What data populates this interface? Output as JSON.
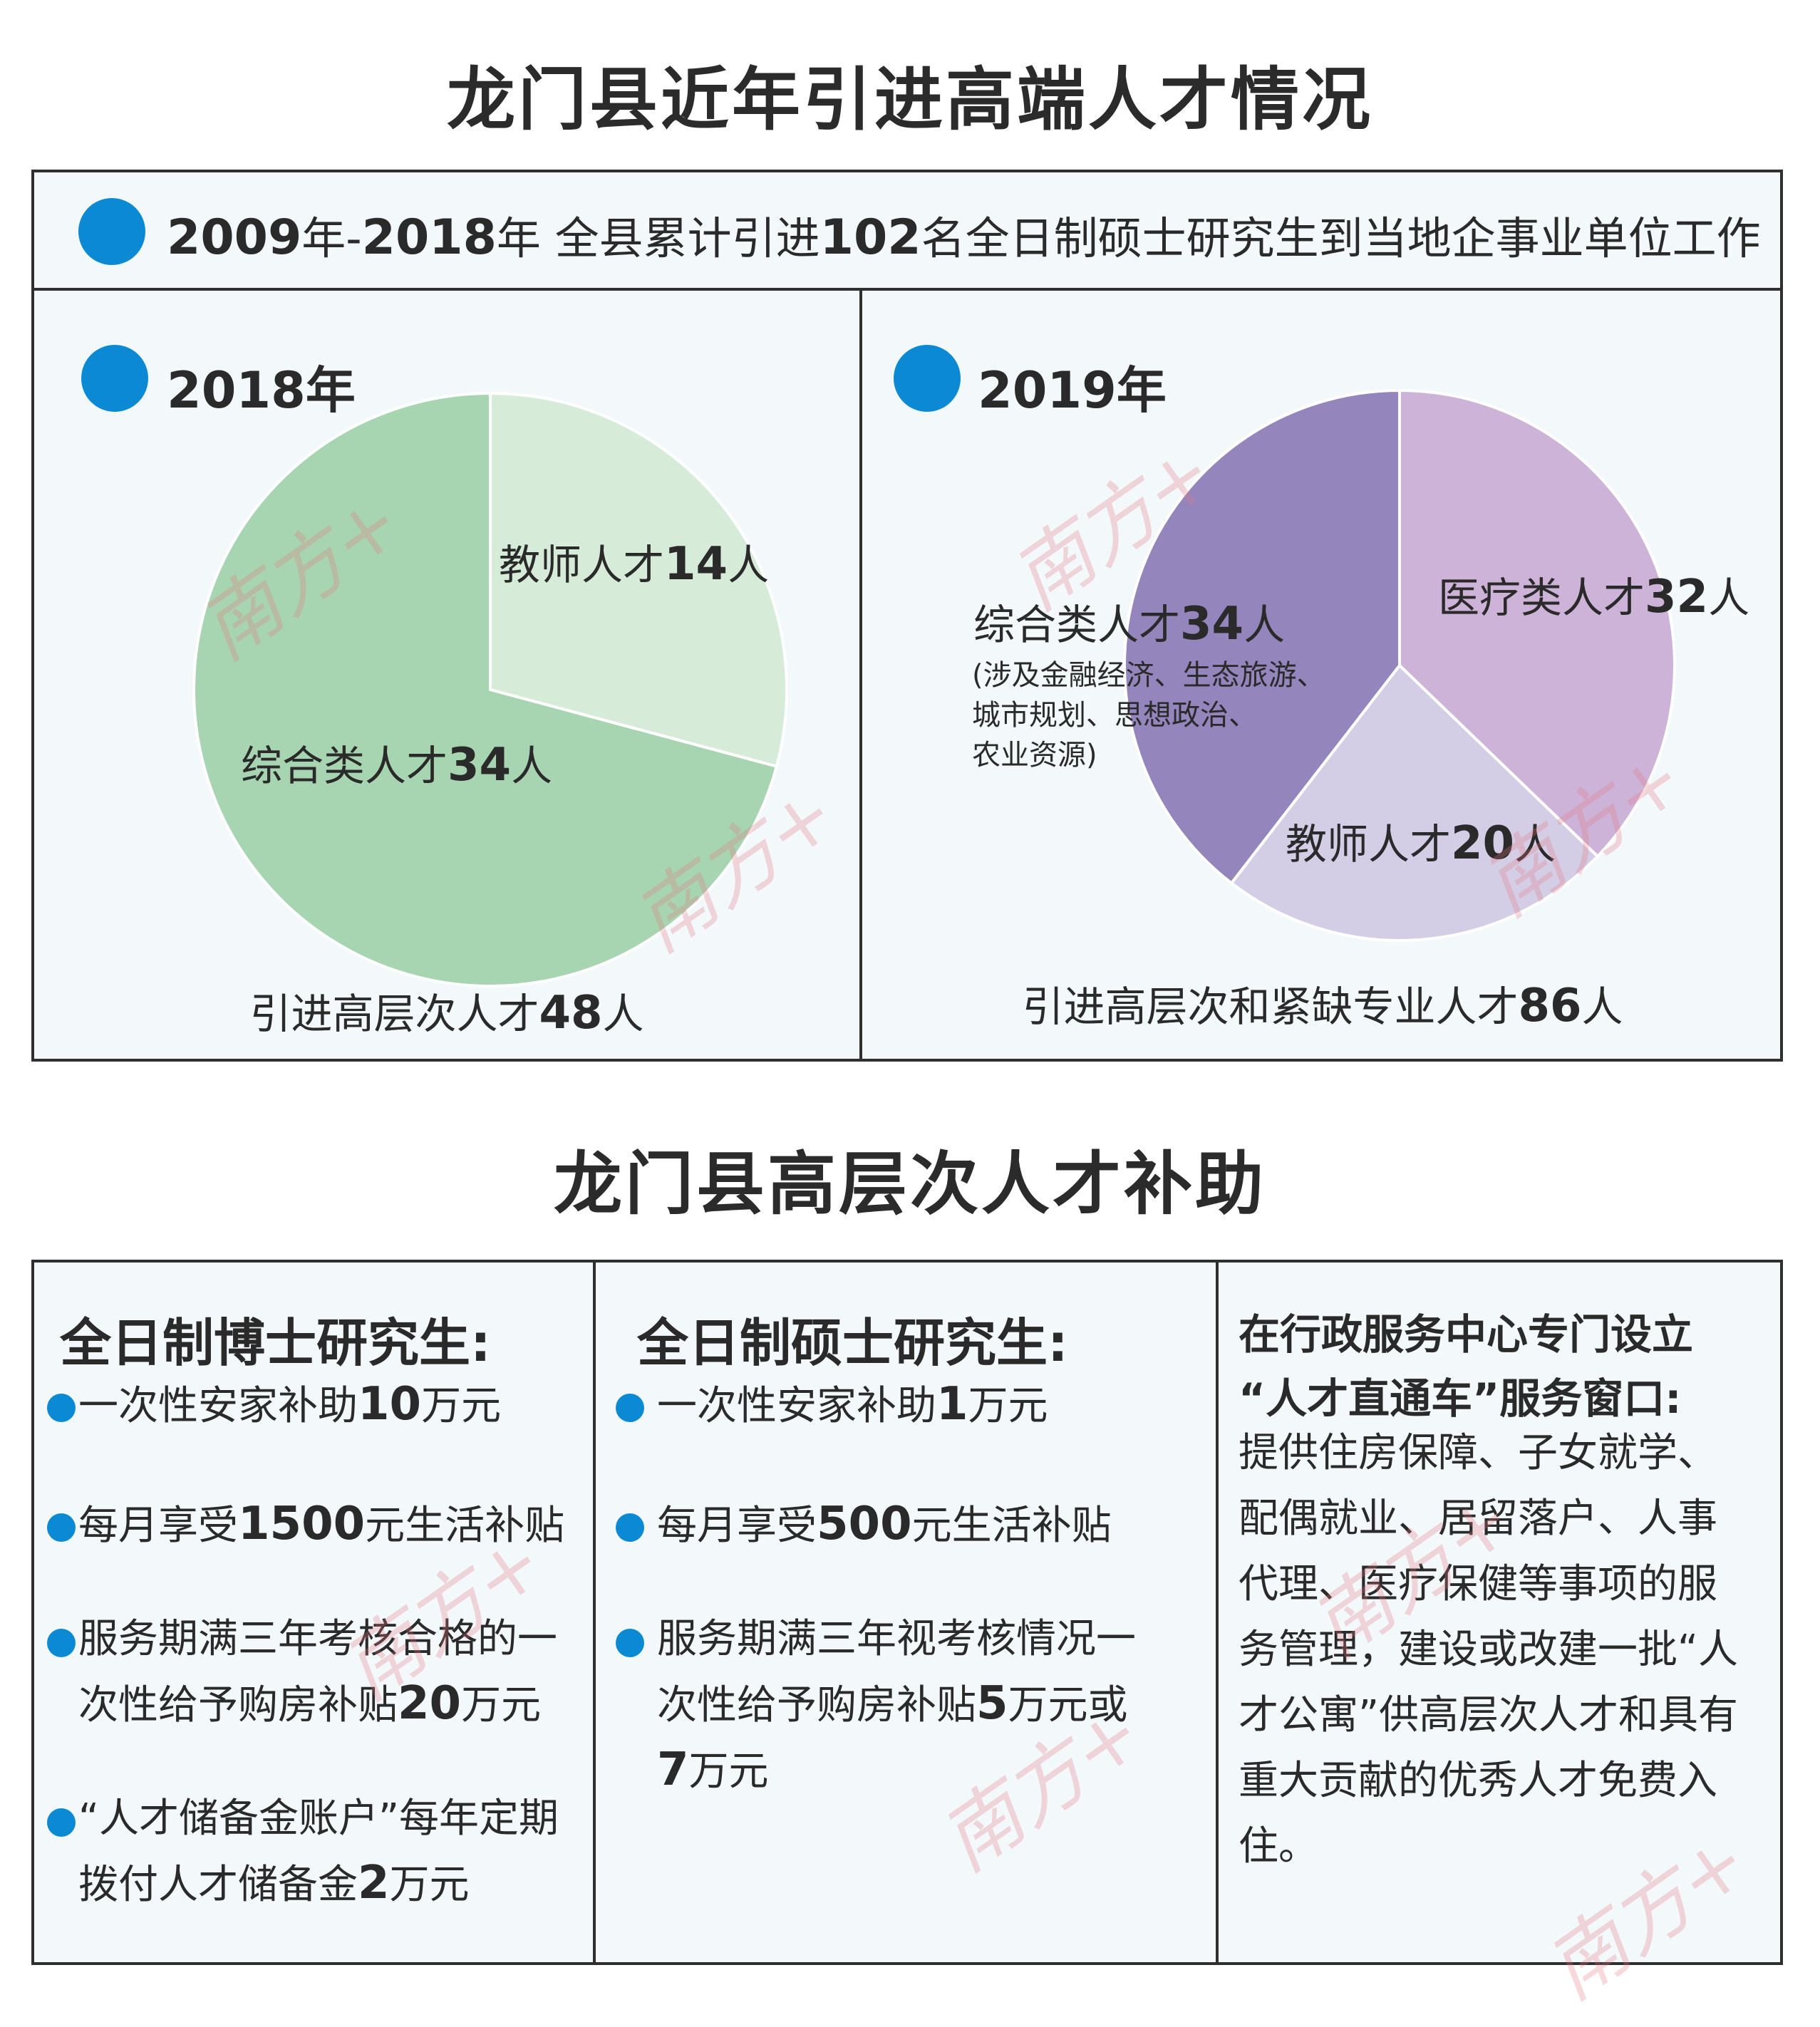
{
  "title1": "龙门县近年引进高端人才情况",
  "summary": {
    "years_bold1": "2009",
    "years_mid": "年-",
    "years_bold2": "2018",
    "years_end": "年  全县累计引进",
    "num": "102",
    "rest": "名全日制硕士研究生到当地企事业单位工作"
  },
  "charts_meta": {
    "y2018_label": "2018年",
    "y2019_label": "2019年",
    "y2018_caption_pre": "引进高层次人才",
    "y2018_caption_num": "48",
    "y2018_caption_post": "人",
    "y2019_caption_pre": "引进高层次和紧缺专业人才",
    "y2019_caption_num": "86",
    "y2019_caption_post": "人",
    "y2019_note_line1": "(涉及金融经济、生态旅游、",
    "y2019_note_line2": "城市规划、思想政治、",
    "y2019_note_line3": "农业资源)"
  },
  "chart_data": [
    {
      "type": "pie",
      "title": "2018年",
      "slices": [
        {
          "label_pre": "教师人才",
          "value": 14,
          "label_post": "人",
          "color": "#d6ecd9"
        },
        {
          "label_pre": "综合类人才",
          "value": 34,
          "label_post": "人",
          "color": "#a8d5b1"
        }
      ]
    },
    {
      "type": "pie",
      "title": "2019年",
      "slices": [
        {
          "label_pre": "医疗类人才",
          "value": 32,
          "label_post": "人",
          "color": "#cdb3d8"
        },
        {
          "label_pre": "教师人才",
          "value": 20,
          "label_post": "人",
          "color": "#d4cde6"
        },
        {
          "label_pre": "综合类人才",
          "value": 34,
          "label_post": "人",
          "color": "#9485bd"
        }
      ]
    }
  ],
  "title2": "龙门县高层次人才补助",
  "col1": {
    "heading": "全日制博士研究生:",
    "items": [
      {
        "pre": "一次性安家补助",
        "num": "10",
        "post": "万元"
      },
      {
        "pre": "每月享受",
        "num": "1500",
        "post": "元生活补贴"
      },
      {
        "pre": "服务期满三年考核合格的一次性给予购房补贴",
        "num": "20",
        "post": "万元"
      },
      {
        "pre": "“人才储备金账户”每年定期拨付人才储备金",
        "num": "2",
        "post": "万元"
      }
    ]
  },
  "col2": {
    "heading": "全日制硕士研究生:",
    "items": [
      {
        "pre": "一次性安家补助",
        "num": "1",
        "post": "万元"
      },
      {
        "pre": "每月享受",
        "num": "500",
        "post": "元生活补贴"
      },
      {
        "pre": "服务期满三年视考核情况一次性给予购房补贴",
        "num": "5",
        "post": "万元或",
        "num2": "7",
        "post2": "万元"
      }
    ]
  },
  "col3": {
    "heading_line1": "在行政服务中心专门设立",
    "heading_line2": "“人才直通车”服务窗口:",
    "body": "提供住房保障、子女就学、配偶就业、居留落户、人事代理、医疗保健等事项的服务管理，建设或改建一批“人才公寓”供高层次人才和具有重大贡献的优秀人才免费入住。"
  },
  "watermark": "南方+",
  "colors": {
    "accent_dot": "#0b8ad3",
    "border": "#2f2f2f",
    "panel_bg": "#f3f8fb"
  }
}
